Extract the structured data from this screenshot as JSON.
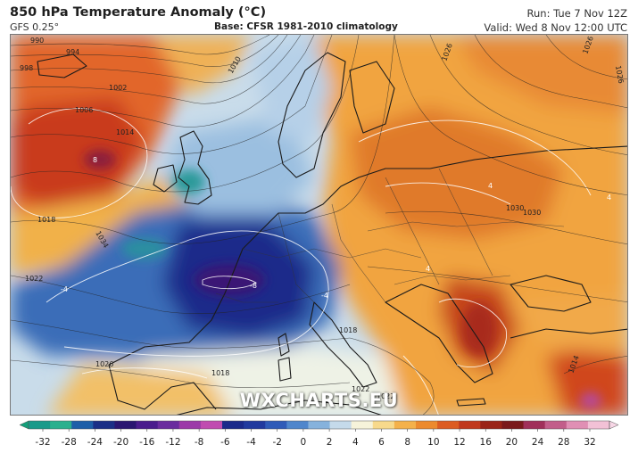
{
  "header": {
    "title": "850 hPa Temperature Anomaly (°C)",
    "model": "GFS 0.25°",
    "base": "Base: CFSR 1981-2010 climatology",
    "run": "Run: Tue 7 Nov 12Z",
    "valid": "Valid: Wed 8 Nov 12:00 UTC"
  },
  "watermark": "WXCHARTS.EU",
  "isobar_labels": [
    "990",
    "994",
    "998",
    "1002",
    "1006",
    "1010",
    "1014",
    "1018",
    "1022",
    "1026",
    "1030",
    "1034",
    "1018",
    "1018",
    "1022",
    "1026",
    "1026",
    "1026",
    "1030",
    "1014",
    "1022"
  ],
  "anomaly_labels": [
    "8",
    "-8",
    "-4",
    "4",
    "4",
    "4",
    "-4"
  ],
  "colorbar": {
    "ticks": [
      "-32",
      "-28",
      "-24",
      "-20",
      "-16",
      "-12",
      "-8",
      "-6",
      "-4",
      "-2",
      "0",
      "2",
      "4",
      "6",
      "8",
      "10",
      "12",
      "16",
      "20",
      "24",
      "28",
      "32"
    ],
    "colors": [
      "#1a9a8a",
      "#2bb08e",
      "#1e5fa8",
      "#1b2f86",
      "#2a1670",
      "#4a1c8c",
      "#6a2c9e",
      "#9c3aa8",
      "#c04cb0",
      "#1b2a8a",
      "#213a9e",
      "#2f5bb8",
      "#4f86cc",
      "#86b2dc",
      "#c5daea",
      "#f6f3da",
      "#f7d98c",
      "#f4b14b",
      "#ec8a2e",
      "#dc5c22",
      "#c0391d",
      "#9a2418",
      "#7a1a1c",
      "#a0305a",
      "#c25e8a",
      "#e08fb4",
      "#f2c1d6"
    ],
    "left_cap": "#13a07a",
    "right_cap": "#f7d7e6"
  },
  "legend_colors": {
    "very_cold": "#1c2a8c",
    "cold": "#4d7fc6",
    "cool": "#a9c7e4",
    "neutral": "#f1efe0",
    "warm": "#f2b24c",
    "very_warm": "#d2451c",
    "extreme_warm": "#9b1c2c",
    "teal_cold": "#1f9f86",
    "magenta": "#c04fb7"
  }
}
